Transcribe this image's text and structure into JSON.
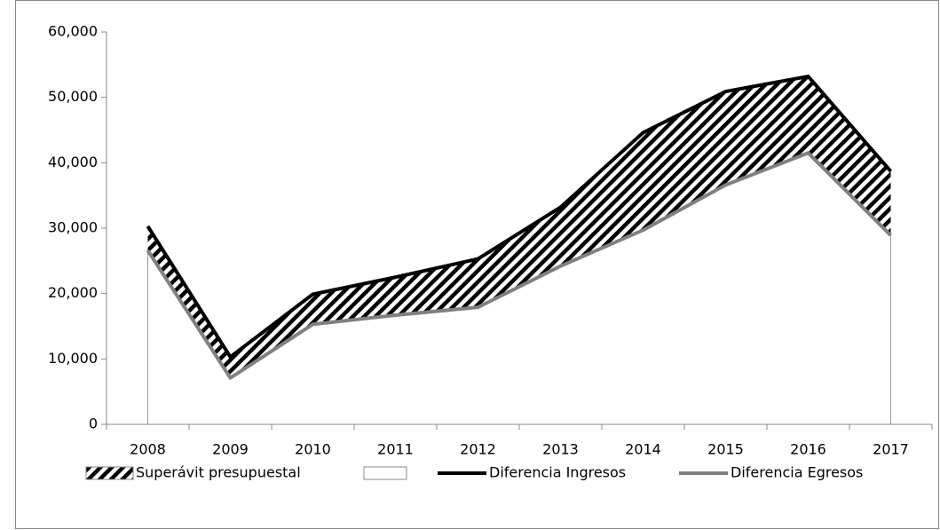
{
  "chart_data": {
    "type": "area",
    "categories": [
      "2008",
      "2009",
      "2010",
      "2011",
      "2012",
      "2013",
      "2014",
      "2015",
      "2016",
      "2017"
    ],
    "series": [
      {
        "name": "Diferencia Egresos",
        "color": "#808080",
        "fill": "#ffffff",
        "stack": true,
        "values": [
          26600,
          7100,
          15300,
          16700,
          17900,
          24200,
          29700,
          36600,
          41500,
          28900
        ]
      },
      {
        "name": "Superávit presupuestal",
        "color": "#000000",
        "fill": "hatch",
        "stack": true,
        "values": [
          3700,
          3200,
          4600,
          5800,
          7400,
          9000,
          14900,
          14300,
          11700,
          9800
        ]
      },
      {
        "name": "Diferencia Ingresos",
        "color": "#000000",
        "stack": false,
        "values": [
          30300,
          10300,
          19900,
          22500,
          25300,
          33200,
          44600,
          50900,
          53200,
          38700
        ]
      }
    ],
    "ylim": [
      0,
      60000
    ],
    "yticks": [
      0,
      {
        "value": 10000,
        "label": "10,000"
      },
      {
        "value": 20000,
        "label": "20,000"
      },
      {
        "value": 30000,
        "label": "30,000"
      },
      {
        "value": 40000,
        "label": "40,000"
      },
      {
        "value": 50000,
        "label": "50,000"
      },
      {
        "value": 60000,
        "label": "60,000"
      }
    ],
    "grid": false,
    "legend": "bottom"
  }
}
